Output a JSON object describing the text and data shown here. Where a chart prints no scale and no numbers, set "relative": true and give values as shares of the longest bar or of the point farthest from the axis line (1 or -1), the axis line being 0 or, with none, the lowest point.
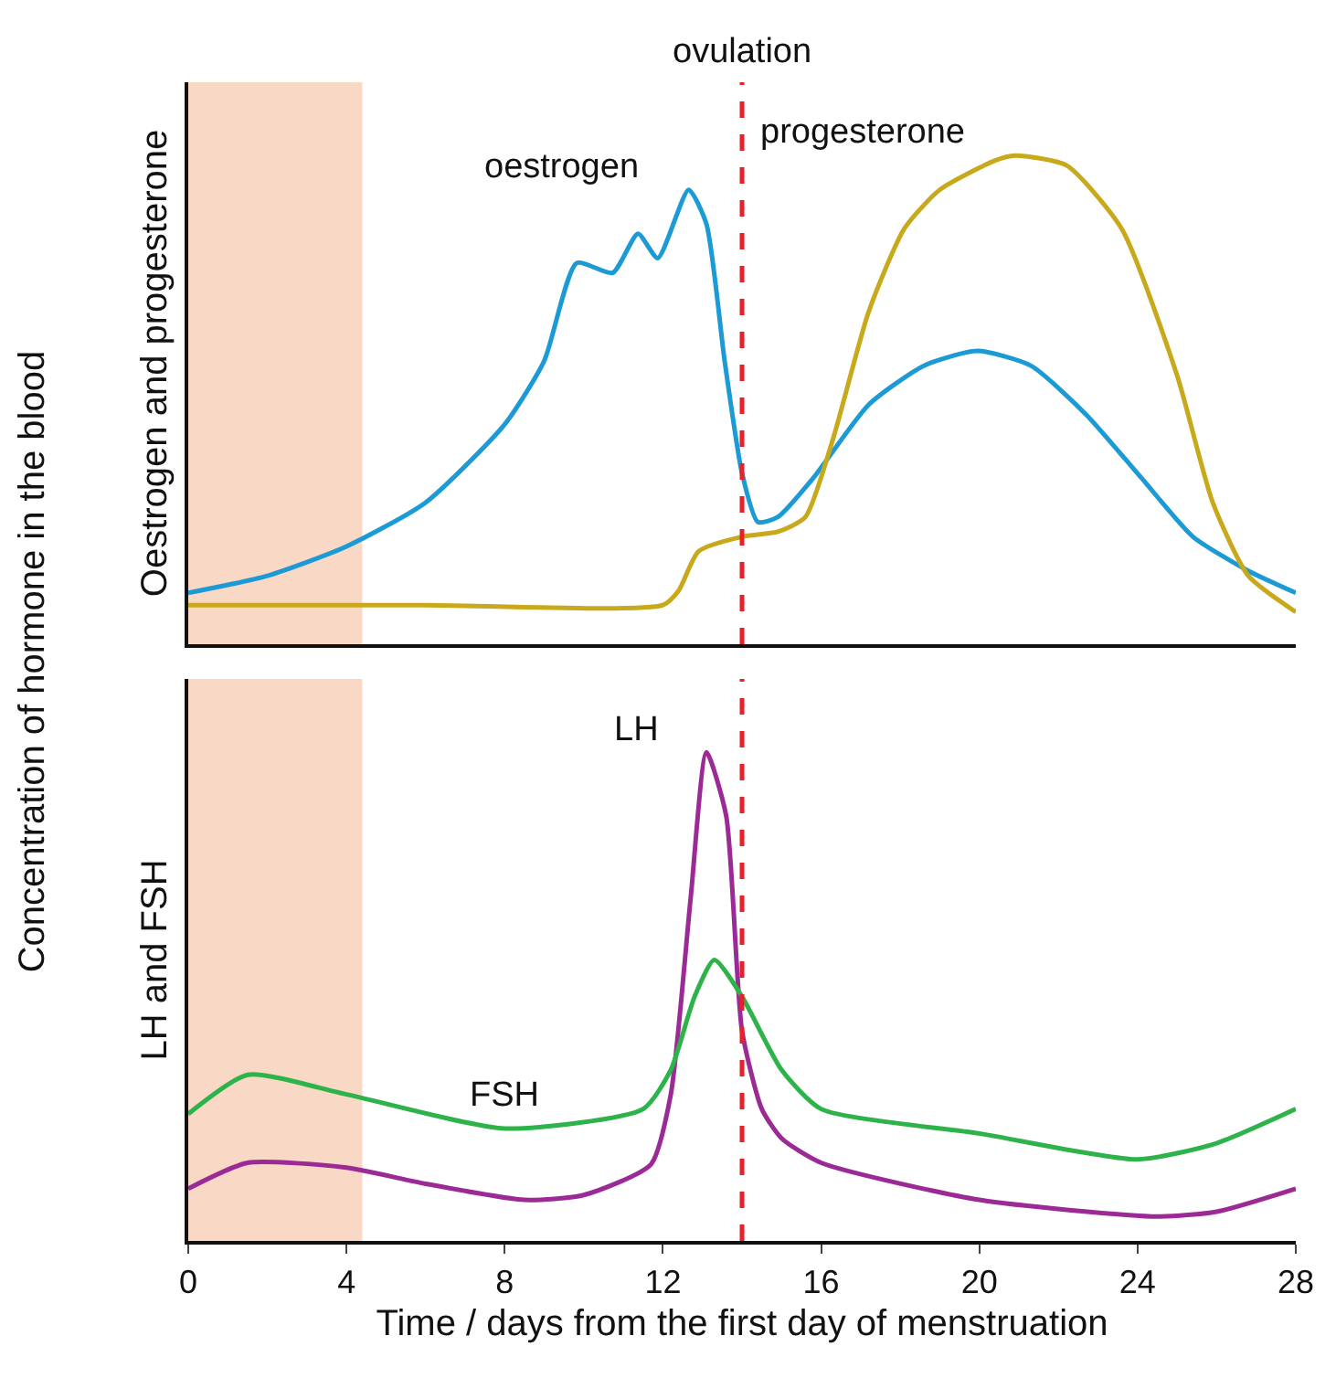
{
  "chart_data": [
    {
      "type": "line",
      "relative": true,
      "ylabel": "Oestrogen and progesterone",
      "annotations": [
        "Concentration of hormone in the blood"
      ],
      "xlim": [
        0,
        28
      ],
      "xticks": [
        0,
        4,
        8,
        12,
        16,
        20,
        24,
        28
      ],
      "tick_labels": false,
      "grid": false,
      "legend": false,
      "marker": "none",
      "line_style": "solid",
      "bands": [
        {
          "axis": "x",
          "from": 0,
          "to": 4.4,
          "color": "#f9d8c6"
        }
      ],
      "ref_lines": [
        {
          "axis": "x",
          "value": 14,
          "label": "ovulation",
          "color": "#e8202a",
          "line_style": "dashed"
        }
      ],
      "series": [
        {
          "name": "oestrogen",
          "color": "#1b9ad6",
          "x": [
            0,
            2,
            4,
            6,
            8,
            9,
            9.82,
            10.73,
            11.37,
            11.87,
            12.65,
            13.1,
            13.56,
            14,
            14.4,
            14.9,
            15.8,
            17.2,
            18.6,
            19.95,
            21.3,
            22.7,
            24.1,
            25.4,
            26.8,
            28
          ],
          "values": [
            0.105,
            0.14,
            0.2,
            0.29,
            0.45,
            0.58,
            0.78,
            0.76,
            0.84,
            0.79,
            0.93,
            0.86,
            0.58,
            0.35,
            0.25,
            0.26,
            0.34,
            0.49,
            0.57,
            0.6,
            0.57,
            0.47,
            0.34,
            0.22,
            0.15,
            0.105
          ]
        },
        {
          "name": "progesterone",
          "color": "#c9a91c",
          "x": [
            0,
            6,
            12,
            12.4,
            12.9,
            14,
            14.9,
            15.6,
            16.3,
            17.2,
            18.1,
            19,
            20.4,
            20.9,
            22.2,
            23.6,
            25,
            25.9,
            26.8,
            28
          ],
          "values": [
            0.08,
            0.08,
            0.08,
            0.11,
            0.19,
            0.22,
            0.23,
            0.26,
            0.42,
            0.68,
            0.85,
            0.93,
            0.99,
            1.0,
            0.98,
            0.85,
            0.55,
            0.29,
            0.14,
            0.066
          ]
        }
      ]
    },
    {
      "type": "line",
      "relative": true,
      "ylabel": "LH and FSH",
      "xlabel": "Time / days from the first day of menstruation",
      "xlim": [
        0,
        28
      ],
      "xticks": [
        0,
        4,
        8,
        12,
        16,
        20,
        24,
        28
      ],
      "tick_labels": "x",
      "grid": false,
      "legend": false,
      "marker": "none",
      "line_style": "solid",
      "bands": [
        {
          "axis": "x",
          "from": 0,
          "to": 4.4,
          "color": "#f9d8c6"
        }
      ],
      "ref_lines": [
        {
          "axis": "x",
          "value": 14,
          "color": "#e8202a",
          "line_style": "dashed"
        }
      ],
      "series": [
        {
          "name": "LH",
          "color": "#9b2a96",
          "x": [
            0,
            1.5,
            4,
            6,
            8.5,
            10,
            11.7,
            12.2,
            12.7,
            13.1,
            13.6,
            14,
            14.5,
            15,
            16,
            20,
            24.5,
            26,
            28
          ],
          "values": [
            0.107,
            0.16,
            0.15,
            0.117,
            0.084,
            0.094,
            0.157,
            0.3,
            0.7,
            1.0,
            0.87,
            0.43,
            0.27,
            0.21,
            0.16,
            0.084,
            0.05,
            0.06,
            0.107
          ]
        },
        {
          "name": "FSH",
          "color": "#2db34a",
          "x": [
            0,
            1.5,
            4,
            8,
            11.5,
            12.2,
            12.8,
            13.3,
            14,
            15,
            16,
            20,
            24,
            26,
            28
          ],
          "values": [
            0.26,
            0.34,
            0.3,
            0.23,
            0.27,
            0.35,
            0.5,
            0.575,
            0.5,
            0.35,
            0.27,
            0.22,
            0.167,
            0.2,
            0.27
          ]
        }
      ]
    }
  ]
}
